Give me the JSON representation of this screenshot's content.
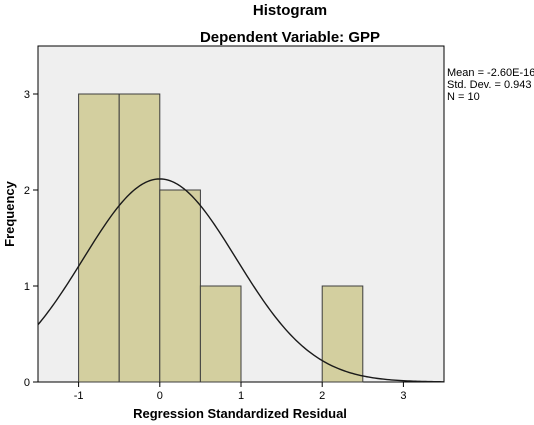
{
  "chart_data": {
    "type": "bar",
    "title": "Histogram",
    "subtitle": "Dependent Variable: GPP",
    "xlabel": "Regression Standardized Residual",
    "ylabel": "Frequency",
    "bins": [
      {
        "x0": -1.0,
        "x1": -0.5,
        "value": 3
      },
      {
        "x0": -0.5,
        "x1": 0.0,
        "value": 3
      },
      {
        "x0": 0.0,
        "x1": 0.5,
        "value": 2
      },
      {
        "x0": 0.5,
        "x1": 1.0,
        "value": 1
      },
      {
        "x0": 2.0,
        "x1": 2.5,
        "value": 1
      }
    ],
    "x_ticks": [
      -1,
      0,
      1,
      2,
      3
    ],
    "x_tick_labels": [
      "-1",
      "0",
      "1",
      "2",
      "3"
    ],
    "y_ticks": [
      0,
      1,
      2,
      3
    ],
    "y_tick_labels": [
      "0",
      "1",
      "2",
      "3"
    ],
    "xlim": [
      -1.5,
      3.5
    ],
    "ylim": [
      0,
      3.5
    ],
    "normal_curve": {
      "mean": 0.0,
      "std": 0.943,
      "n": 10,
      "bin_width": 0.5
    },
    "stats": {
      "mean": "Mean = -2.60E-16",
      "std": "Std. Dev. = 0.943",
      "n": "N = 10"
    },
    "colors": {
      "plot_background": "#efefef",
      "bar_fill": "#d3cf9f",
      "bar_stroke": "#3c3c3c",
      "curve": "#1a1a1a"
    }
  }
}
